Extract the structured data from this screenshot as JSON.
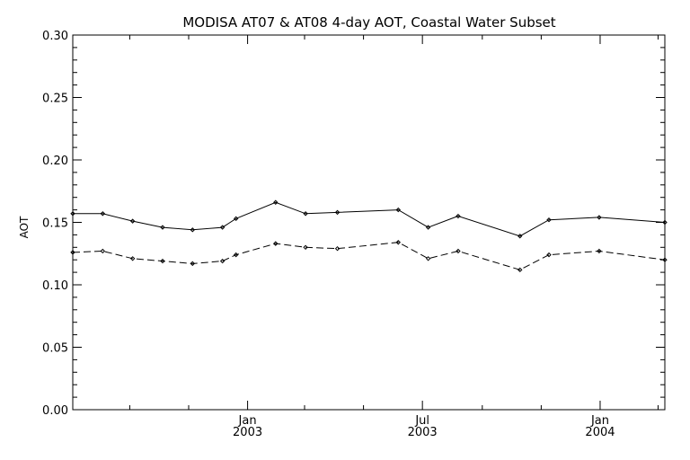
{
  "chart_data": {
    "type": "line",
    "title": "MODISA AT07 & AT08 4-day AOT, Coastal Water Subset",
    "xlabel": "",
    "ylabel": "AOT",
    "xlim": [
      "2002-07-04",
      "2004-03-08"
    ],
    "ylim": [
      0.0,
      0.3
    ],
    "y_ticks": [
      "0.00",
      "0.05",
      "0.10",
      "0.15",
      "0.20",
      "0.25",
      "0.30"
    ],
    "x_major_ticks": [
      {
        "date": "2003-01-01",
        "label_top": "Jan",
        "label_bottom": "2003"
      },
      {
        "date": "2003-07-01",
        "label_top": "Jul",
        "label_bottom": "2003"
      },
      {
        "date": "2004-01-01",
        "label_top": "Jan",
        "label_bottom": "2004"
      }
    ],
    "x_minor_ticks": [
      "2002-09-01",
      "2002-11-01",
      "2003-03-01",
      "2003-05-01",
      "2003-09-01",
      "2003-11-01",
      "2004-03-01"
    ],
    "grid": false,
    "series": [
      {
        "style": "solid",
        "color": "#000000",
        "x": [
          "2002-07-04",
          "2002-08-04",
          "2002-09-04",
          "2002-10-05",
          "2002-11-05",
          "2002-12-06",
          "2002-12-20",
          "2003-01-30",
          "2003-03-02",
          "2003-04-04",
          "2003-06-06",
          "2003-07-07",
          "2003-08-07",
          "2003-10-10",
          "2003-11-09",
          "2003-12-31",
          "2004-03-08"
        ],
        "y": [
          0.157,
          0.157,
          0.151,
          0.146,
          0.144,
          0.146,
          0.153,
          0.166,
          0.157,
          0.158,
          0.16,
          0.146,
          0.155,
          0.139,
          0.152,
          0.154,
          0.15
        ]
      },
      {
        "style": "dashed",
        "color": "#000000",
        "x": [
          "2002-07-04",
          "2002-08-04",
          "2002-09-04",
          "2002-10-05",
          "2002-11-05",
          "2002-12-06",
          "2002-12-20",
          "2003-01-30",
          "2003-03-02",
          "2003-04-04",
          "2003-06-06",
          "2003-07-07",
          "2003-08-07",
          "2003-10-10",
          "2003-11-09",
          "2003-12-31",
          "2004-03-08"
        ],
        "y": [
          0.126,
          0.127,
          0.121,
          0.119,
          0.117,
          0.119,
          0.124,
          0.133,
          0.13,
          0.129,
          0.134,
          0.121,
          0.127,
          0.112,
          0.124,
          0.127,
          0.12
        ]
      }
    ]
  }
}
